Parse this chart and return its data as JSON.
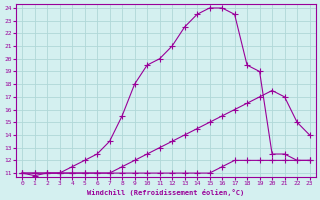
{
  "xlabel": "Windchill (Refroidissement éolien,°C)",
  "bg_color": "#d4f0f0",
  "line_color": "#990099",
  "grid_color": "#b0d8d8",
  "xlim": [
    -0.5,
    23.5
  ],
  "ylim": [
    10.7,
    24.3
  ],
  "xticks": [
    0,
    1,
    2,
    3,
    4,
    5,
    6,
    7,
    8,
    9,
    10,
    11,
    12,
    13,
    14,
    15,
    16,
    17,
    18,
    19,
    20,
    21,
    22,
    23
  ],
  "yticks": [
    11,
    12,
    13,
    14,
    15,
    16,
    17,
    18,
    19,
    20,
    21,
    22,
    23,
    24
  ],
  "line1_x": [
    0,
    1,
    2,
    3,
    4,
    5,
    6,
    7,
    8,
    9,
    10,
    11,
    12,
    13,
    14,
    15,
    16,
    17,
    18,
    19,
    20,
    21,
    22,
    23
  ],
  "line1_y": [
    11,
    11,
    11,
    11,
    11,
    11,
    11,
    11,
    11,
    11,
    11,
    11,
    11,
    11,
    11,
    11,
    11.5,
    12,
    12,
    12,
    12,
    12,
    12,
    12
  ],
  "line2_x": [
    0,
    1,
    2,
    3,
    4,
    5,
    6,
    7,
    8,
    9,
    10,
    11,
    12,
    13,
    14,
    15,
    16,
    17,
    18,
    19,
    20,
    21,
    22,
    23
  ],
  "line2_y": [
    11,
    11,
    11,
    11,
    11,
    11,
    11,
    11,
    11.5,
    12,
    12.5,
    13,
    13.5,
    14,
    14.5,
    15,
    15.5,
    16,
    16.5,
    17,
    17.5,
    17,
    15,
    14
  ],
  "line3_x": [
    0,
    1,
    2,
    3,
    4,
    5,
    6,
    7,
    8,
    9,
    10,
    11,
    12,
    13,
    14,
    15,
    16,
    17,
    18,
    19,
    20,
    21,
    22,
    23
  ],
  "line3_y": [
    11,
    10.8,
    11,
    11,
    11.5,
    12,
    12.5,
    13.5,
    15.5,
    18,
    19.5,
    20,
    21,
    22.5,
    23.5,
    24,
    24,
    23.5,
    19.5,
    19,
    12.5,
    12.5,
    12,
    12
  ]
}
